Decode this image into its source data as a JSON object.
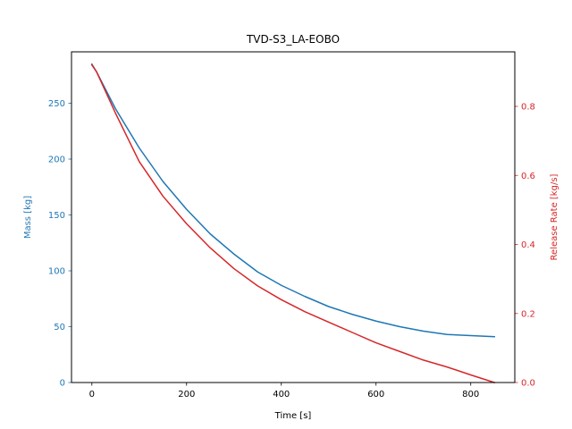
{
  "chart_data": {
    "type": "line",
    "title": "TVD-S3_LA-EOBO",
    "xlabel": "Time [s]",
    "ylabel_left": "Mass [kg]",
    "ylabel_right": "Release Rate [kg/s]",
    "xlim": [
      -43,
      893
    ],
    "ylim_left": [
      0,
      296
    ],
    "ylim_right": [
      0,
      0.958
    ],
    "x_ticks": [
      0,
      200,
      400,
      600,
      800
    ],
    "y_ticks_left": [
      0,
      50,
      100,
      150,
      200,
      250
    ],
    "y_ticks_right": [
      0.0,
      0.2,
      0.4,
      0.6,
      0.8
    ],
    "grid": false,
    "colors": {
      "left_axis": "#1f77b4",
      "right_axis": "#d62728",
      "frame": "#000000"
    },
    "series": [
      {
        "axis": "left",
        "x": [
          0,
          10,
          50,
          100,
          150,
          200,
          250,
          300,
          350,
          400,
          450,
          500,
          550,
          600,
          650,
          700,
          750,
          800,
          850
        ],
        "values": [
          285,
          278,
          245,
          210,
          180,
          155,
          133,
          115,
          99,
          87,
          77,
          68,
          61,
          55,
          50,
          46,
          43,
          42,
          41
        ]
      },
      {
        "axis": "right",
        "x": [
          0,
          10,
          50,
          100,
          150,
          200,
          250,
          300,
          350,
          400,
          450,
          500,
          550,
          600,
          650,
          700,
          750,
          800,
          850
        ],
        "values": [
          0.92,
          0.9,
          0.78,
          0.64,
          0.54,
          0.46,
          0.39,
          0.33,
          0.28,
          0.24,
          0.205,
          0.175,
          0.145,
          0.115,
          0.09,
          0.065,
          0.045,
          0.022,
          0.0
        ]
      }
    ]
  }
}
